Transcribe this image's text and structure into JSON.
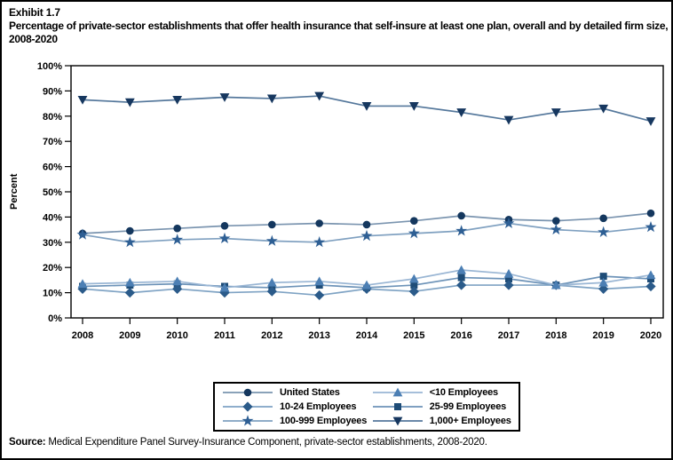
{
  "header": {
    "exhibit_number": "Exhibit 1.7",
    "title": "Percentage of private-sector establishments that offer health insurance that self-insure at least one plan, overall and by detailed firm size, 2008-2020"
  },
  "source": {
    "label": "Source:",
    "text": " Medical Expenditure Panel Survey-Insurance Component, private-sector establishments, 2008-2020."
  },
  "chart_data": {
    "type": "line",
    "title": "Percentage of private-sector establishments that offer health insurance that self-insure at least one plan, overall and by detailed firm size, 2008-2020",
    "xlabel": "",
    "ylabel": "Percent",
    "ylim": [
      0,
      100
    ],
    "ytick_step": 10,
    "ytick_suffix": "%",
    "grid": false,
    "legend_position": "bottom",
    "x": [
      "2008",
      "2009",
      "2010",
      "2011",
      "2012",
      "2013",
      "2014",
      "2015",
      "2016",
      "2017",
      "2018",
      "2019",
      "2020"
    ],
    "series": [
      {
        "name": "United States",
        "marker": "circle",
        "marker_color": "#14375E",
        "line_color": "#7A94AF",
        "values": [
          33.5,
          34.5,
          35.5,
          36.5,
          37,
          37.5,
          37,
          38.5,
          40.5,
          39,
          38.5,
          39.5,
          41.5
        ]
      },
      {
        "name": "<10 Employees",
        "marker": "triangle-up",
        "marker_color": "#4C7FB4",
        "line_color": "#9AB6D4",
        "values": [
          13.5,
          14,
          14.5,
          12,
          14,
          14.5,
          13,
          15.5,
          19,
          17.5,
          13,
          14,
          17
        ]
      },
      {
        "name": "10-24 Employees",
        "marker": "diamond",
        "marker_color": "#2B5B8A",
        "line_color": "#7FA3C4",
        "values": [
          11.5,
          10,
          11.5,
          10,
          10.5,
          9,
          11.5,
          10.5,
          13,
          13,
          13,
          11.5,
          12.5
        ]
      },
      {
        "name": "25-99 Employees",
        "marker": "square",
        "marker_color": "#1E4C77",
        "line_color": "#6D93B8",
        "values": [
          12.5,
          13,
          13.5,
          12.5,
          12,
          13,
          12,
          13,
          16,
          15.5,
          13,
          16.5,
          15.5
        ]
      },
      {
        "name": "100-999 Employees",
        "marker": "star",
        "marker_color": "#2E5F94",
        "line_color": "#7FA0C0",
        "values": [
          33,
          30,
          31,
          31.5,
          30.5,
          30,
          32.5,
          33.5,
          34.5,
          37.5,
          35,
          34,
          36
        ]
      },
      {
        "name": "1,000+ Employees",
        "marker": "triangle-down",
        "marker_color": "#16375F",
        "line_color": "#54779B",
        "values": [
          86.5,
          85.5,
          86.5,
          87.5,
          87,
          88,
          84,
          84,
          81.5,
          78.5,
          81.5,
          83,
          78
        ]
      }
    ],
    "axis_color": "#000000"
  }
}
